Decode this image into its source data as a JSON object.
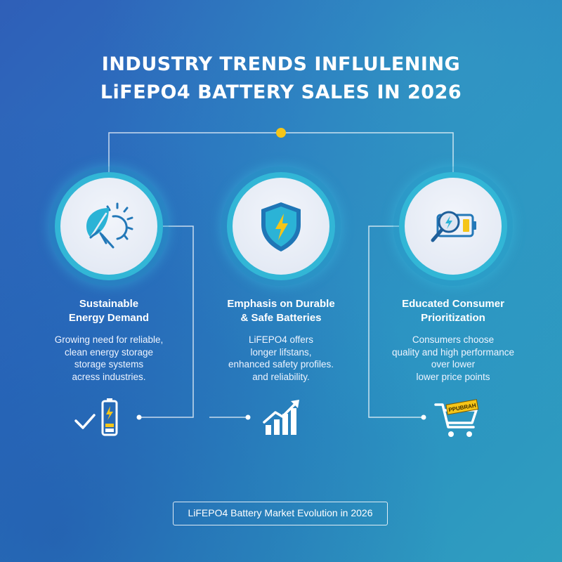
{
  "title": {
    "line1": "INDUSTRY TRENDS INFLULENING",
    "line2": "LiFEPO4 BATTERY SALES IN 2026"
  },
  "colors": {
    "accent_yellow": "#f5c518",
    "ring_teal": "#32b6d6",
    "icon_blue": "#2378b8"
  },
  "trends": [
    {
      "icon": "leaf-sun-icon",
      "title_lines": [
        "Sustainable",
        "Energy Demand"
      ],
      "desc_lines": [
        "Growing need for reliable,",
        "clean energy storage",
        "storage systems",
        "acress industries."
      ],
      "bottom_icon": "check-battery-icon"
    },
    {
      "icon": "shield-lightning-icon",
      "title_lines": [
        "Emphasis on Durable",
        "& Safe Batteries"
      ],
      "desc_lines": [
        "LiFEPO4 offers",
        "longer lifstans,",
        "enhanced safety profiles.",
        "and reliability."
      ],
      "bottom_icon": "growth-chart-icon"
    },
    {
      "icon": "magnifier-battery-icon",
      "title_lines": [
        "Educated Consumer",
        "Prioritization"
      ],
      "desc_lines": [
        "Consumers choose",
        "quality and high performance",
        "over lower",
        "lower price points"
      ],
      "bottom_icon": "shopping-cart-icon",
      "cart_tag": "PPUBRAH"
    }
  ],
  "footer": "LiFEPO4 Battery Market Evolution in 2026"
}
